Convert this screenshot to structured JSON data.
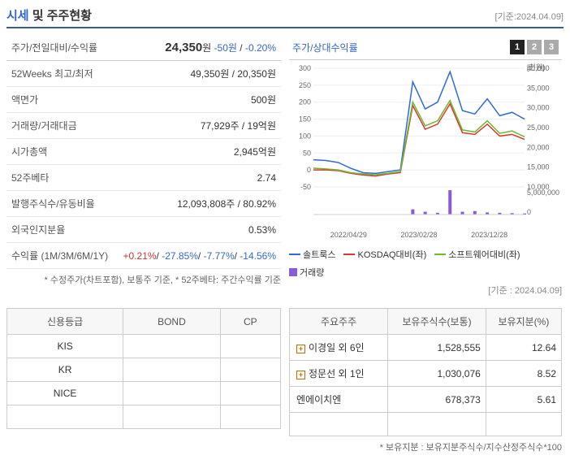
{
  "header": {
    "title_a": "시세",
    "title_b": " 및 주주현황",
    "date": "[기준:2024.04.09]"
  },
  "price_section": {
    "title": "주가/전일대비/수익률",
    "price": "24,350",
    "price_unit": "원",
    "change": "-50원",
    "pct": "-0.20%"
  },
  "rows": [
    {
      "label": "52Weeks 최고/최저",
      "value": "49,350원 / 20,350원"
    },
    {
      "label": "액면가",
      "value": "500원"
    },
    {
      "label": "거래량/거래대금",
      "value": "77,929주 / 19억원"
    },
    {
      "label": "시가총액",
      "value": "2,945억원"
    },
    {
      "label": "52주베타",
      "value": "2.74"
    },
    {
      "label": "발행주식수/유동비율",
      "value": "12,093,808주 / 80.92%"
    },
    {
      "label": "외국인지분율",
      "value": "0.53%"
    }
  ],
  "returns": {
    "label": "수익률 (1M/3M/6M/1Y)",
    "v1": "+0.21%",
    "v2": "-27.85%",
    "v3": "-7.77%",
    "v4": "-14.56%"
  },
  "footnote1": "* 수정주가(차트포함), 보통주 기준, * 52주베타: 주간수익률 기준",
  "chart": {
    "title": "주가/상대수익률",
    "tabs": [
      "1",
      "2",
      "3"
    ],
    "yl_ticks": [
      "300",
      "250",
      "200",
      "150",
      "100",
      "50",
      "0",
      "-50"
    ],
    "yr_ticks": [
      "40,000",
      "35,000",
      "30,000",
      "25,000",
      "20,000",
      "15,000",
      "10,000",
      "5,000,000",
      "0"
    ],
    "yr_unit": "[천원]",
    "x_ticks": [
      "2022/04/29",
      "2023/02/28",
      "2023/12/28"
    ],
    "series": [
      {
        "name": "솔트룩스",
        "color": "#2e6bd6",
        "y": [
          30,
          28,
          22,
          5,
          -8,
          -10,
          -5,
          0,
          260,
          180,
          200,
          290,
          175,
          165,
          210,
          160,
          170,
          150
        ]
      },
      {
        "name": "KOSDAQ대비(좌)",
        "color": "#d63a2e",
        "y": [
          0,
          0,
          -2,
          -10,
          -15,
          -18,
          -12,
          -8,
          190,
          120,
          135,
          195,
          110,
          105,
          135,
          100,
          105,
          90
        ]
      },
      {
        "name": "소프트웨어대비(좌)",
        "color": "#6eb82e",
        "y": [
          5,
          3,
          0,
          -8,
          -12,
          -14,
          -10,
          -5,
          200,
          130,
          145,
          205,
          118,
          112,
          145,
          108,
          115,
          98
        ]
      }
    ],
    "volume": {
      "name": "거래량",
      "color": "#8a5bd6",
      "y": [
        0,
        0,
        0,
        0,
        0,
        0,
        0,
        0,
        15,
        8,
        5,
        70,
        8,
        10,
        6,
        5,
        4,
        3
      ]
    }
  },
  "chart_date": "[기준 : 2024.04.09]",
  "credit": {
    "headers": [
      "신용등급",
      "BOND",
      "CP"
    ],
    "rows": [
      [
        "KIS",
        "",
        ""
      ],
      [
        "KR",
        "",
        ""
      ],
      [
        "NICE",
        "",
        ""
      ]
    ]
  },
  "shareholders": {
    "headers": [
      "주요주주",
      "보유주식수(보통)",
      "보유지분(%)"
    ],
    "rows": [
      {
        "expand": true,
        "name": "이경일 외 6인",
        "shares": "1,528,555",
        "pct": "12.64"
      },
      {
        "expand": true,
        "name": "정문선 외 1인",
        "shares": "1,030,076",
        "pct": "8.52"
      },
      {
        "expand": false,
        "name": "엔에이치엔",
        "shares": "678,373",
        "pct": "5.61"
      }
    ]
  },
  "footnote2": "* 보유지분 : 보유지분주식수/지수산정주식수*100"
}
